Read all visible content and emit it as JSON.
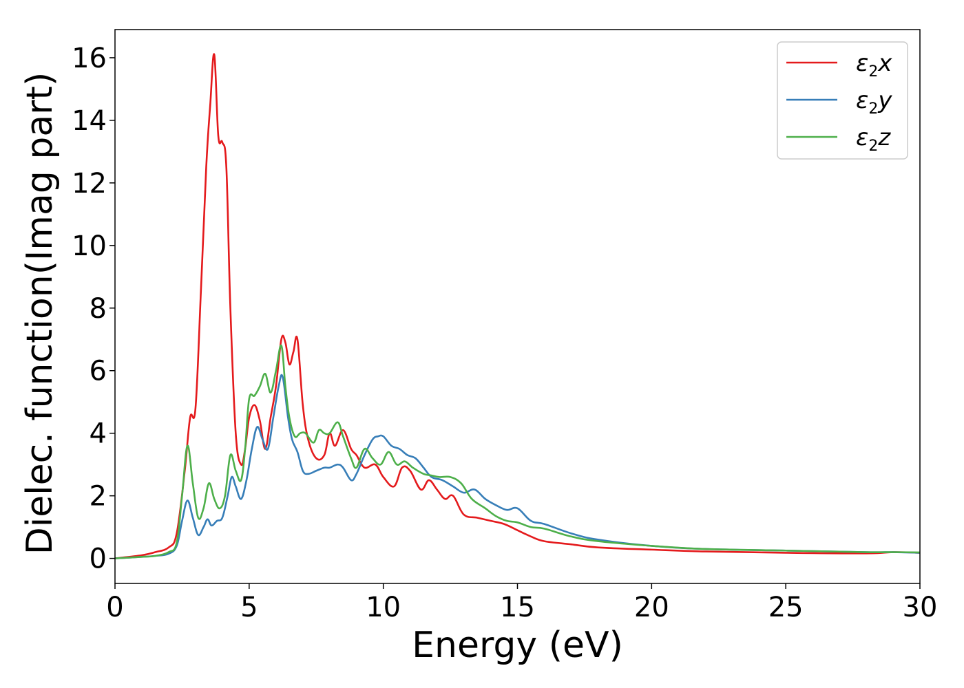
{
  "chart_data": {
    "type": "line",
    "xlabel": "Energy (eV)",
    "ylabel": "Dielec. function(Imag part)",
    "xlim": [
      0,
      30
    ],
    "ylim": [
      -0.8,
      16.9
    ],
    "xticks": [
      0,
      5,
      10,
      15,
      20,
      25,
      30
    ],
    "yticks": [
      0,
      2,
      4,
      6,
      8,
      10,
      12,
      14,
      16
    ],
    "xtick_labels": [
      "0",
      "5",
      "10",
      "15",
      "20",
      "25",
      "30"
    ],
    "ytick_labels": [
      "0",
      "2",
      "4",
      "6",
      "8",
      "10",
      "12",
      "14",
      "16"
    ],
    "grid": false,
    "legend_position": "top-right",
    "series": [
      {
        "name": "ε2x",
        "legend": {
          "main": "ε",
          "sub": "2",
          "suffix": "x"
        },
        "color": "#e41a1c",
        "x": [
          0,
          1,
          1.5,
          2,
          2.3,
          2.6,
          2.8,
          3.0,
          3.2,
          3.4,
          3.55,
          3.7,
          3.85,
          4.0,
          4.15,
          4.3,
          4.5,
          4.7,
          4.85,
          5.0,
          5.2,
          5.4,
          5.6,
          5.8,
          6.0,
          6.2,
          6.35,
          6.5,
          6.65,
          6.8,
          7.0,
          7.2,
          7.5,
          7.8,
          8.0,
          8.2,
          8.5,
          8.8,
          9.0,
          9.3,
          9.7,
          10.0,
          10.4,
          10.7,
          11.0,
          11.4,
          11.7,
          12.0,
          12.3,
          12.6,
          13.0,
          13.5,
          14.0,
          14.5,
          15.0,
          15.5,
          16.0,
          17.0,
          18.0,
          20.0,
          22.0,
          25.0,
          28.0,
          29.0,
          30.0
        ],
        "y": [
          0.0,
          0.1,
          0.2,
          0.35,
          0.8,
          2.8,
          4.5,
          4.8,
          8.5,
          12.5,
          14.5,
          16.1,
          13.5,
          13.3,
          12.5,
          8.0,
          4.0,
          3.0,
          3.5,
          4.5,
          4.9,
          4.4,
          3.5,
          4.5,
          5.5,
          7.0,
          6.9,
          6.2,
          6.6,
          7.0,
          4.9,
          3.8,
          3.2,
          3.3,
          4.0,
          3.6,
          4.1,
          3.5,
          3.3,
          2.9,
          3.0,
          2.6,
          2.3,
          2.9,
          2.8,
          2.2,
          2.5,
          2.2,
          1.9,
          2.0,
          1.4,
          1.3,
          1.2,
          1.1,
          0.9,
          0.7,
          0.55,
          0.45,
          0.35,
          0.28,
          0.22,
          0.18,
          0.16,
          0.2,
          0.18
        ]
      },
      {
        "name": "ε2y",
        "legend": {
          "main": "ε",
          "sub": "2",
          "suffix": "y"
        },
        "color": "#377eb8",
        "x": [
          0,
          1,
          1.5,
          2,
          2.3,
          2.5,
          2.7,
          2.9,
          3.1,
          3.3,
          3.45,
          3.6,
          3.8,
          4.0,
          4.2,
          4.35,
          4.5,
          4.7,
          4.9,
          5.1,
          5.3,
          5.5,
          5.7,
          5.9,
          6.1,
          6.25,
          6.45,
          6.6,
          6.8,
          7.0,
          7.2,
          7.5,
          7.8,
          8.0,
          8.3,
          8.5,
          8.8,
          9.0,
          9.3,
          9.6,
          9.8,
          10.0,
          10.3,
          10.6,
          10.9,
          11.2,
          11.5,
          11.8,
          12.2,
          12.6,
          13.0,
          13.4,
          13.8,
          14.2,
          14.6,
          15.0,
          15.5,
          16.0,
          17.0,
          18.0,
          20.0,
          22.0,
          25.0,
          28.0,
          29.0,
          30.0
        ],
        "y": [
          0.0,
          0.05,
          0.08,
          0.15,
          0.4,
          1.2,
          1.85,
          1.3,
          0.75,
          1.0,
          1.25,
          1.05,
          1.2,
          1.3,
          2.0,
          2.6,
          2.3,
          1.9,
          2.5,
          3.5,
          4.2,
          3.8,
          3.5,
          4.5,
          5.5,
          5.8,
          4.5,
          3.8,
          3.4,
          2.8,
          2.7,
          2.8,
          2.9,
          2.9,
          3.0,
          2.9,
          2.5,
          2.7,
          3.3,
          3.8,
          3.9,
          3.9,
          3.6,
          3.5,
          3.3,
          3.2,
          2.9,
          2.6,
          2.5,
          2.3,
          2.1,
          2.2,
          1.9,
          1.7,
          1.55,
          1.6,
          1.2,
          1.1,
          0.8,
          0.6,
          0.4,
          0.3,
          0.25,
          0.2,
          0.2,
          0.18
        ]
      },
      {
        "name": "ε2z",
        "legend": {
          "main": "ε",
          "sub": "2",
          "suffix": "z"
        },
        "color": "#4daf4a",
        "x": [
          0,
          1,
          1.5,
          2,
          2.3,
          2.5,
          2.7,
          2.9,
          3.1,
          3.3,
          3.5,
          3.7,
          3.9,
          4.1,
          4.3,
          4.5,
          4.7,
          4.85,
          5.0,
          5.2,
          5.4,
          5.6,
          5.8,
          6.0,
          6.2,
          6.35,
          6.5,
          6.7,
          6.9,
          7.1,
          7.4,
          7.6,
          7.8,
          8.0,
          8.3,
          8.5,
          8.8,
          9.0,
          9.3,
          9.6,
          9.9,
          10.2,
          10.5,
          10.8,
          11.1,
          11.5,
          11.8,
          12.1,
          12.5,
          12.9,
          13.3,
          13.8,
          14.2,
          14.6,
          15.0,
          15.5,
          16.0,
          17.0,
          18.0,
          20.0,
          22.0,
          25.0,
          28.0,
          29.0,
          30.0
        ],
        "y": [
          0.0,
          0.05,
          0.08,
          0.2,
          0.5,
          2.0,
          3.6,
          2.4,
          1.3,
          1.6,
          2.4,
          1.9,
          1.6,
          2.0,
          3.3,
          2.8,
          2.5,
          3.5,
          5.1,
          5.2,
          5.5,
          5.9,
          5.3,
          6.0,
          6.8,
          5.5,
          4.5,
          3.9,
          4.0,
          4.0,
          3.7,
          4.1,
          4.0,
          4.0,
          4.35,
          3.9,
          3.2,
          2.9,
          3.5,
          3.2,
          3.0,
          3.4,
          3.0,
          3.1,
          2.9,
          2.7,
          2.65,
          2.6,
          2.6,
          2.4,
          1.9,
          1.6,
          1.35,
          1.2,
          1.15,
          1.0,
          0.95,
          0.7,
          0.55,
          0.4,
          0.3,
          0.25,
          0.2,
          0.2,
          0.19
        ]
      }
    ]
  }
}
